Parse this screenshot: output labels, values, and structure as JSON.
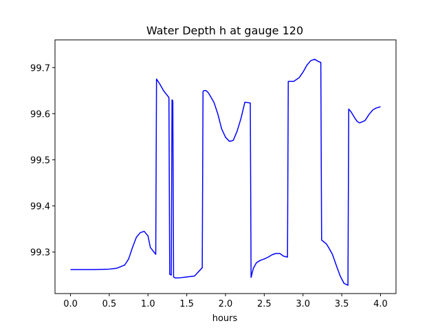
{
  "chart_data": {
    "type": "line",
    "title": "Water Depth h at gauge 120",
    "xlabel": "hours",
    "ylabel": "",
    "xlim": [
      -0.2,
      4.2
    ],
    "ylim": [
      99.21,
      99.76
    ],
    "xticks": [
      0.0,
      0.5,
      1.0,
      1.5,
      2.0,
      2.5,
      3.0,
      3.5,
      4.0
    ],
    "xtick_labels": [
      "0.0",
      "0.5",
      "1.0",
      "1.5",
      "2.0",
      "2.5",
      "3.0",
      "3.5",
      "4.0"
    ],
    "yticks": [
      99.3,
      99.4,
      99.5,
      99.6,
      99.7
    ],
    "ytick_labels": [
      "99.3",
      "99.4",
      "99.5",
      "99.6",
      "99.7"
    ],
    "grid": false,
    "series": [
      {
        "color": "#0000ff",
        "x": [
          0.0,
          0.3,
          0.5,
          0.6,
          0.7,
          0.75,
          0.8,
          0.85,
          0.9,
          0.95,
          1.0,
          1.03,
          1.1,
          1.11,
          1.15,
          1.2,
          1.27,
          1.28,
          1.3,
          1.31,
          1.32,
          1.33,
          1.35,
          1.4,
          1.5,
          1.6,
          1.7,
          1.71,
          1.72,
          1.75,
          1.78,
          1.85,
          1.9,
          1.95,
          2.0,
          2.05,
          2.1,
          2.15,
          2.2,
          2.25,
          2.32,
          2.33,
          2.36,
          2.4,
          2.45,
          2.5,
          2.55,
          2.6,
          2.65,
          2.7,
          2.75,
          2.8,
          2.81,
          2.83,
          2.88,
          2.95,
          3.0,
          3.05,
          3.1,
          3.15,
          3.18,
          3.2,
          3.23,
          3.24,
          3.27,
          3.3,
          3.33,
          3.38,
          3.43,
          3.48,
          3.53,
          3.58,
          3.59,
          3.62,
          3.67,
          3.7,
          3.73,
          3.8,
          3.85,
          3.9,
          3.94,
          4.0
        ],
        "y": [
          99.262,
          99.262,
          99.263,
          99.265,
          99.272,
          99.285,
          99.31,
          99.332,
          99.342,
          99.345,
          99.335,
          99.31,
          99.295,
          99.675,
          99.665,
          99.65,
          99.635,
          99.252,
          99.25,
          99.63,
          99.628,
          99.246,
          99.244,
          99.244,
          99.246,
          99.248,
          99.266,
          99.648,
          99.65,
          99.65,
          99.645,
          99.625,
          99.6,
          99.567,
          99.549,
          99.54,
          99.542,
          99.562,
          99.59,
          99.625,
          99.623,
          99.245,
          99.265,
          99.277,
          99.282,
          99.285,
          99.289,
          99.294,
          99.297,
          99.297,
          99.291,
          99.289,
          99.67,
          99.67,
          99.67,
          99.678,
          99.69,
          99.705,
          99.715,
          99.718,
          99.715,
          99.713,
          99.711,
          99.326,
          99.322,
          99.318,
          99.31,
          99.295,
          99.271,
          99.248,
          99.232,
          99.228,
          99.61,
          99.604,
          99.59,
          99.583,
          99.58,
          99.585,
          99.598,
          99.608,
          99.612,
          99.615
        ]
      }
    ]
  }
}
